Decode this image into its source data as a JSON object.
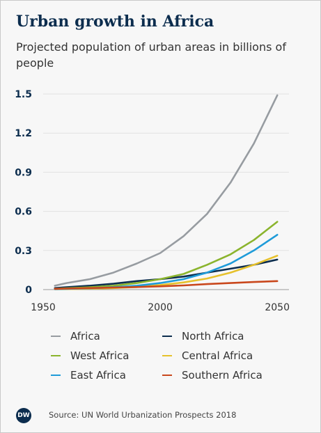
{
  "header": {
    "title": "Urban growth in Africa",
    "subtitle": "Projected population of urban areas in billions of people"
  },
  "footer": {
    "logo_text": "DW",
    "source": "Source: UN World Urbanization Prospects 2018"
  },
  "chart_data": {
    "type": "line",
    "title": "Urban growth in Africa",
    "subtitle": "Projected population of urban areas in billions of people",
    "xlabel": "",
    "ylabel": "",
    "xlim": [
      1950,
      2055
    ],
    "ylim": [
      0,
      1.5
    ],
    "x_ticks": [
      1950,
      2000,
      2050
    ],
    "y_ticks": [
      0,
      0.3,
      0.6,
      0.9,
      1.2,
      1.5
    ],
    "y_tick_labels": [
      "0",
      "0.3",
      "0.6",
      "0.9",
      "1.2",
      "1.5"
    ],
    "grid": "horizontal",
    "legend_position": "bottom",
    "x": [
      1955,
      1960,
      1970,
      1980,
      1990,
      2000,
      2010,
      2020,
      2030,
      2040,
      2050
    ],
    "series": [
      {
        "name": "Africa",
        "color": "#979ca1",
        "values": [
          0.03,
          0.05,
          0.08,
          0.13,
          0.2,
          0.28,
          0.41,
          0.58,
          0.82,
          1.12,
          1.49
        ]
      },
      {
        "name": "North Africa",
        "color": "#0c2d4e",
        "values": [
          0.012,
          0.018,
          0.03,
          0.045,
          0.065,
          0.08,
          0.1,
          0.13,
          0.16,
          0.19,
          0.23
        ]
      },
      {
        "name": "West Africa",
        "color": "#8bb42d",
        "values": [
          0.006,
          0.01,
          0.018,
          0.03,
          0.05,
          0.08,
          0.12,
          0.19,
          0.27,
          0.38,
          0.52
        ]
      },
      {
        "name": "Central Africa",
        "color": "#e6c12c",
        "values": [
          0.003,
          0.004,
          0.007,
          0.012,
          0.02,
          0.035,
          0.055,
          0.085,
          0.13,
          0.19,
          0.26
        ]
      },
      {
        "name": "East Africa",
        "color": "#1e9bd9",
        "values": [
          0.004,
          0.006,
          0.01,
          0.018,
          0.03,
          0.05,
          0.08,
          0.13,
          0.2,
          0.3,
          0.42
        ]
      },
      {
        "name": "Southern Africa",
        "color": "#c9471c",
        "values": [
          0.006,
          0.008,
          0.012,
          0.016,
          0.02,
          0.025,
          0.032,
          0.042,
          0.05,
          0.058,
          0.065
        ]
      }
    ]
  }
}
